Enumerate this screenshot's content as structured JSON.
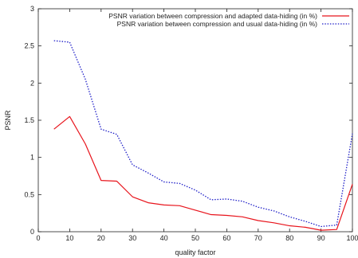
{
  "chart_data": {
    "type": "line",
    "xlabel": "quality factor",
    "ylabel": "PSNR",
    "xlim": [
      0,
      100
    ],
    "ylim": [
      0,
      3
    ],
    "x_ticks": [
      "0",
      "10",
      "20",
      "30",
      "40",
      "50",
      "60",
      "70",
      "80",
      "90",
      "100"
    ],
    "y_ticks": [
      "0",
      "0.5",
      "1",
      "1.5",
      "2",
      "2.5",
      "3"
    ],
    "grid": false,
    "legend_position": "top-right",
    "x": [
      5,
      10,
      15,
      20,
      25,
      30,
      35,
      40,
      45,
      50,
      55,
      60,
      65,
      70,
      75,
      80,
      85,
      90,
      95,
      100
    ],
    "series": [
      {
        "name": "PSNR variation between compression and adapted data-hiding (in %)",
        "color": "#e8141c",
        "style": "solid",
        "values": [
          1.38,
          1.55,
          1.18,
          0.69,
          0.68,
          0.47,
          0.39,
          0.36,
          0.35,
          0.29,
          0.23,
          0.22,
          0.2,
          0.15,
          0.12,
          0.08,
          0.06,
          0.02,
          0.03,
          0.64
        ]
      },
      {
        "name": "PSNR variation between compression and usual data-hiding (in %)",
        "color": "#1f1fc8",
        "style": "dotted",
        "values": [
          2.57,
          2.55,
          2.05,
          1.38,
          1.31,
          0.9,
          0.79,
          0.67,
          0.65,
          0.56,
          0.43,
          0.44,
          0.41,
          0.33,
          0.28,
          0.2,
          0.14,
          0.07,
          0.09,
          1.32
        ]
      }
    ]
  }
}
